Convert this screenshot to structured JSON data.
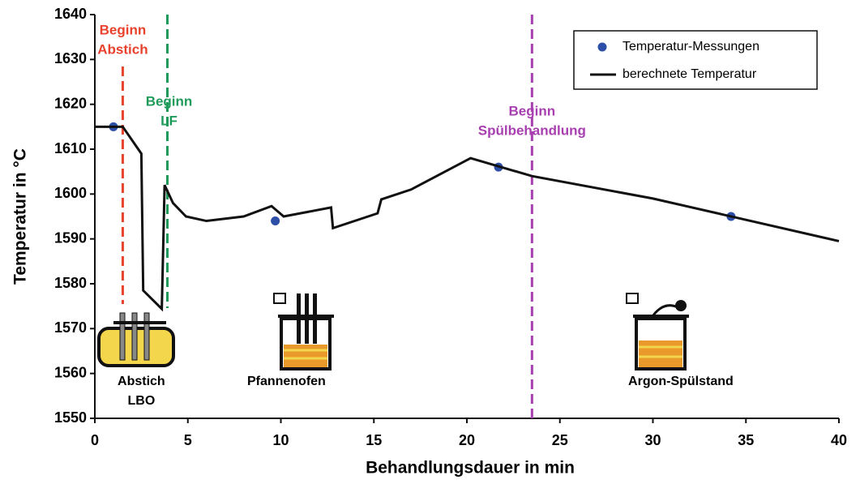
{
  "chart_data": {
    "type": "line",
    "xlabel": "Behandlungsdauer in min",
    "ylabel": "Temperatur in °C",
    "xlim": [
      0,
      40
    ],
    "xticks": [
      0,
      5,
      10,
      15,
      20,
      25,
      30,
      35,
      40
    ],
    "ylim": [
      1550,
      1640
    ],
    "yticks": [
      1550,
      1560,
      1570,
      1580,
      1590,
      1600,
      1610,
      1620,
      1630,
      1640
    ],
    "grid": false,
    "legend": "top-right",
    "series": [
      {
        "name": "Temperatur-Messungen",
        "color": "#2e4fa8",
        "marker": "dot",
        "x": [
          1,
          9.7,
          21.7,
          34.2
        ],
        "values": [
          1615,
          1594,
          1606,
          1595
        ]
      },
      {
        "name": "berechnete Temperatur",
        "color": "#111111",
        "marker": "line",
        "x": [
          0,
          1.5,
          2.5,
          2.6,
          3.6,
          3.75,
          4.2,
          4.9,
          6,
          8,
          9.5,
          10.15,
          12.7,
          12.8,
          15.2,
          15.4,
          17,
          20.2,
          23.5,
          30,
          40
        ],
        "values": [
          1615,
          1615,
          1609,
          1578.5,
          1574.4,
          1602,
          1598,
          1595,
          1594,
          1595,
          1597.3,
          1595,
          1597,
          1592.4,
          1595.7,
          1598.8,
          1601,
          1608,
          1604,
          1599,
          1589.5
        ]
      }
    ],
    "vlines": [
      {
        "x": 1.5,
        "color": "#e8412c",
        "label": [
          "Beginn",
          "Abstich"
        ]
      },
      {
        "x": 3.9,
        "color": "#1f9a5a",
        "label": [
          "Beginn",
          "LF"
        ]
      },
      {
        "x": 23.5,
        "color": "#a83fb0",
        "label": [
          "Beginn",
          "Spülbehandlung"
        ]
      }
    ],
    "annotations": [
      {
        "x": 2.5,
        "lines": [
          "Abstich",
          "LBO"
        ]
      },
      {
        "x": 10.3,
        "lines": [
          "Pfannenofen"
        ]
      },
      {
        "x": 31.5,
        "lines": [
          "Argon-Spülstand"
        ]
      }
    ]
  }
}
